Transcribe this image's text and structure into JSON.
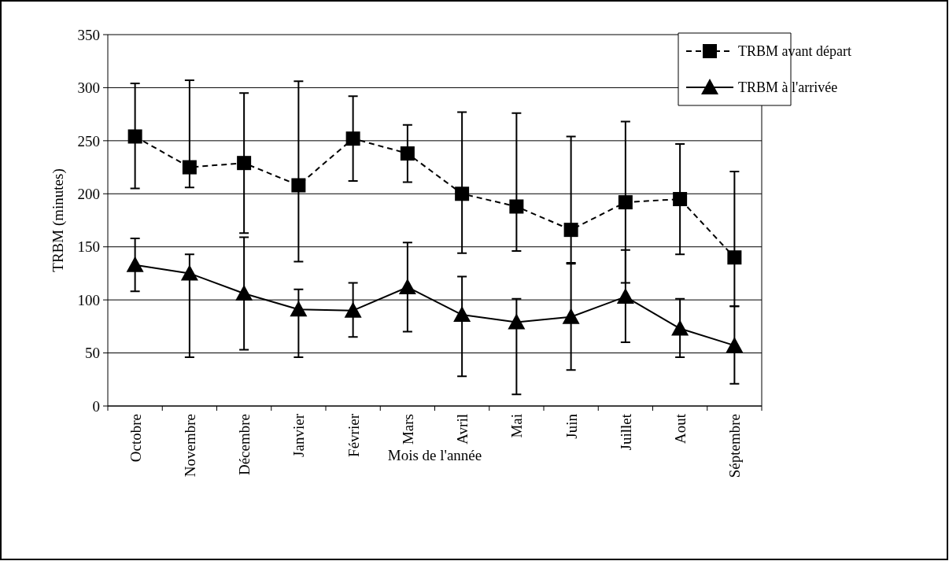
{
  "chart_data": {
    "type": "line",
    "xlabel": "Mois de l'année",
    "ylabel": "TRBM (minutes)",
    "categories": [
      "Octobre",
      "Novembre",
      "Décembre",
      "Janvier",
      "Février",
      "Mars",
      "Avril",
      "Mai",
      "Juin",
      "Juillet",
      "Aout",
      "Séptembre"
    ],
    "ylim": [
      0,
      350
    ],
    "yticks": [
      0,
      50,
      100,
      150,
      200,
      250,
      300,
      350
    ],
    "grid": "y",
    "legend": "top right",
    "series": [
      {
        "name": "TRBM avant départ",
        "color": "#000000",
        "marker": "square",
        "line_style": "dashed",
        "values": [
          254,
          225,
          229,
          208,
          252,
          238,
          200,
          188,
          166,
          192,
          195,
          140
        ],
        "errors": [
          [
            205,
            304
          ],
          [
            206,
            307
          ],
          [
            163,
            295
          ],
          [
            136,
            306
          ],
          [
            212,
            292
          ],
          [
            211,
            265
          ],
          [
            144,
            277
          ],
          [
            146,
            276
          ],
          [
            135,
            254
          ],
          [
            116,
            268
          ],
          [
            143,
            247
          ],
          [
            94,
            221
          ]
        ]
      },
      {
        "name": "TRBM à l'arrivée",
        "color": "#000000",
        "marker": "triangle",
        "line_style": "solid",
        "values": [
          133,
          125,
          106,
          91,
          90,
          112,
          86,
          79,
          84,
          103,
          73,
          57
        ],
        "errors": [
          [
            108,
            158
          ],
          [
            46,
            143
          ],
          [
            53,
            159
          ],
          [
            46,
            110
          ],
          [
            65,
            116
          ],
          [
            70,
            154
          ],
          [
            28,
            122
          ],
          [
            11,
            101
          ],
          [
            34,
            134
          ],
          [
            60,
            147
          ],
          [
            46,
            101
          ],
          [
            21,
            94
          ]
        ]
      }
    ]
  }
}
